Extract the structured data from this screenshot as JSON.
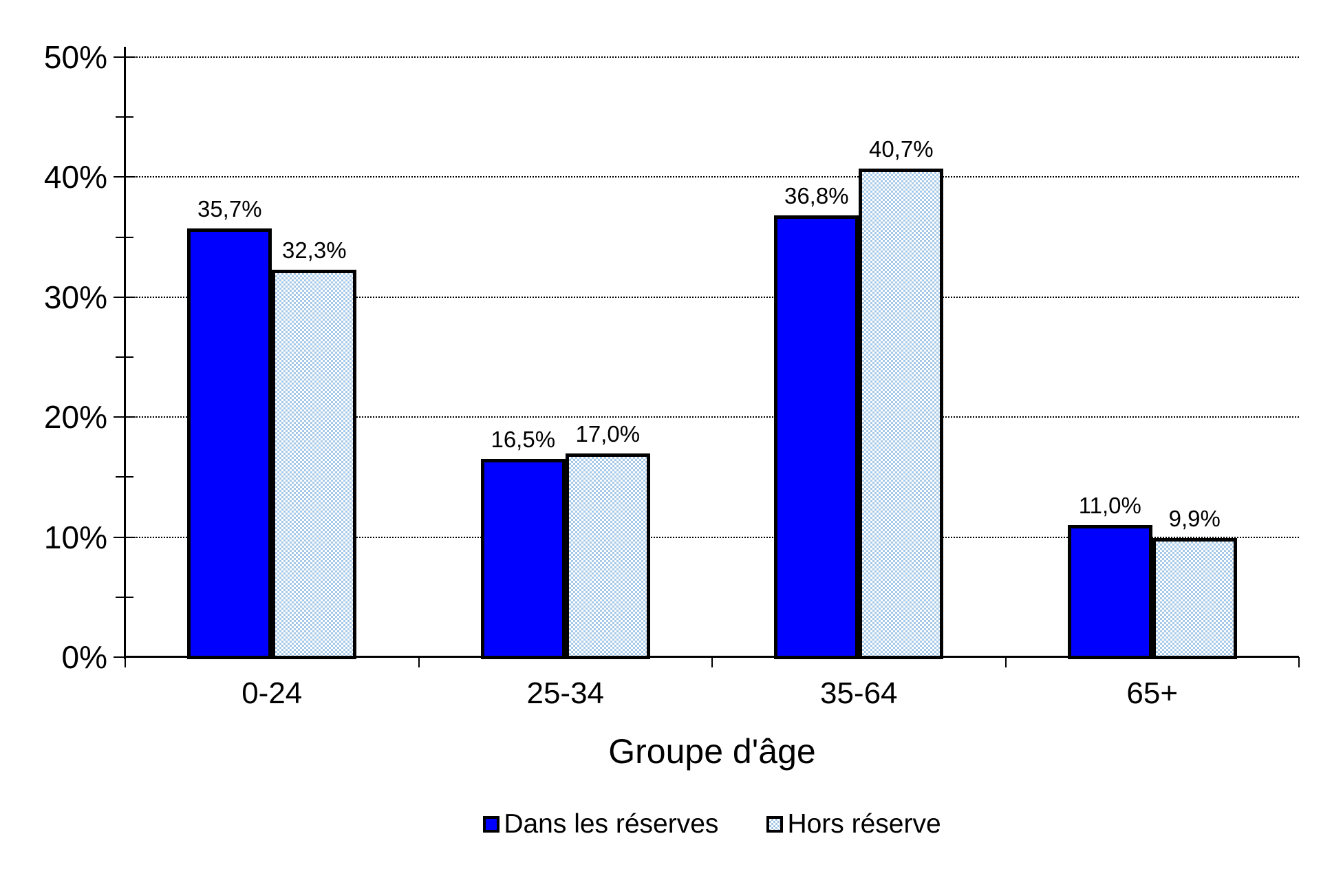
{
  "chart_data": {
    "type": "bar",
    "title": "",
    "xlabel": "Groupe d'âge",
    "ylabel": "",
    "categories": [
      "0-24",
      "25-34",
      "35-64",
      "65+"
    ],
    "series": [
      {
        "name": "Dans les réserves",
        "pattern": "solid",
        "color": "#0000FF",
        "values": [
          35.7,
          16.5,
          36.8,
          11.0
        ],
        "value_labels": [
          "35,7%",
          "16,5%",
          "36,8%",
          "11,0%"
        ]
      },
      {
        "name": "Hors réserve",
        "pattern": "checker",
        "color": "#A6C9E8",
        "values": [
          32.3,
          17.0,
          40.7,
          9.9
        ],
        "value_labels": [
          "32,3%",
          "17,0%",
          "40,7%",
          "9,9%"
        ]
      }
    ],
    "ylim": [
      0,
      50
    ],
    "ytick_step": 10,
    "yminor_step": 5,
    "ytick_labels": [
      "0%",
      "10%",
      "20%",
      "30%",
      "40%",
      "50%"
    ],
    "grid": "major-horizontal-dotted",
    "legend_position": "bottom-center",
    "axis_color": "#000000",
    "bar_border_color": "#000000",
    "background_color": "#FFFFFF"
  }
}
